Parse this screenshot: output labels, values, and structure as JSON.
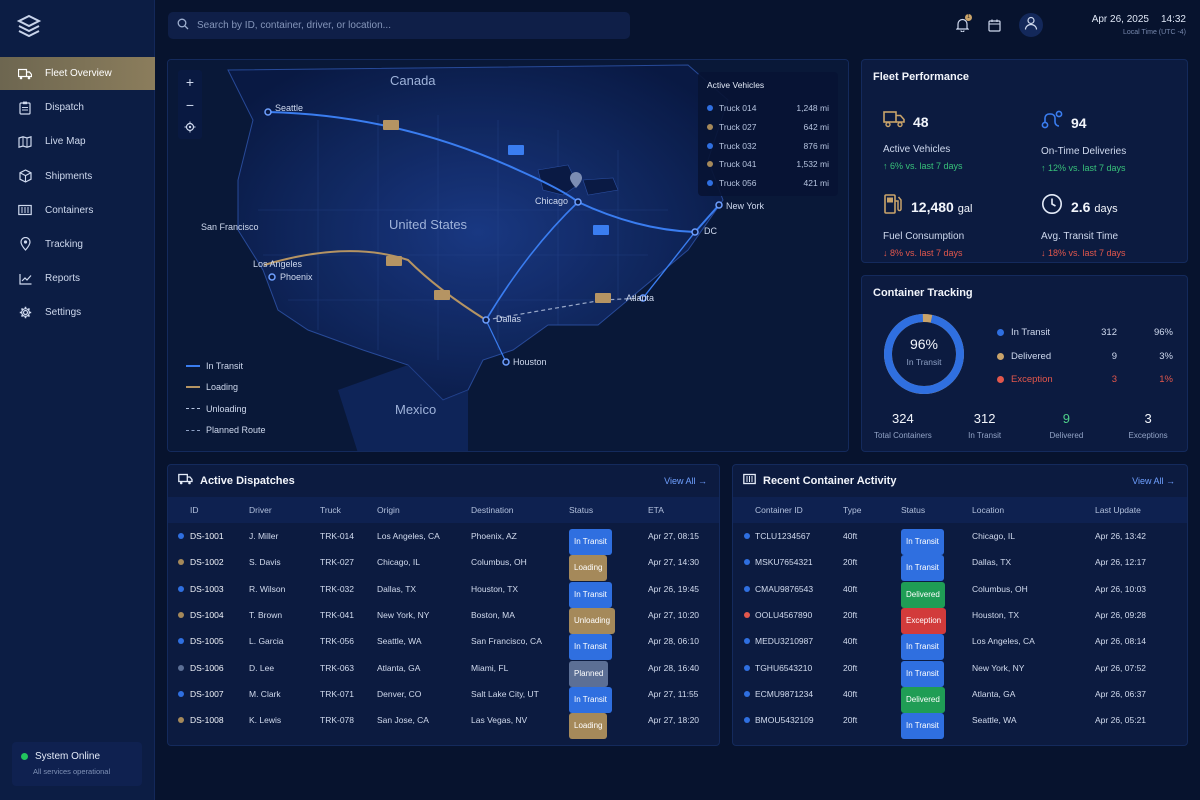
{
  "colors": {
    "accent": "#8b7d5c",
    "transit": "#2f6fe0",
    "loading": "#a5895a",
    "delivered": "#1f9d55",
    "exception": "#d23b3b",
    "planned": "#5c6f95"
  },
  "nav": {
    "items": [
      {
        "label": "Fleet Overview",
        "icon": "truck-icon"
      },
      {
        "label": "Dispatch",
        "icon": "clipboard-icon"
      },
      {
        "label": "Live Map",
        "icon": "map-icon"
      },
      {
        "label": "Shipments",
        "icon": "box-icon"
      },
      {
        "label": "Containers",
        "icon": "container-icon"
      },
      {
        "label": "Tracking",
        "icon": "pin-icon"
      },
      {
        "label": "Reports",
        "icon": "chart-icon"
      },
      {
        "label": "Settings",
        "icon": "gear-icon"
      }
    ],
    "system": {
      "title": "System Online",
      "sub": "All services operational"
    }
  },
  "top": {
    "search_placeholder": "Search by ID, container, driver, or location...",
    "notif_count": "1",
    "date": "Apr 26, 2025",
    "time": "14:32",
    "tz": "Local Time (UTC -4)"
  },
  "map": {
    "labels": {
      "canada": "Canada",
      "us": "United States",
      "mexico": "Mexico",
      "seattle": "Seattle",
      "sf": "San Francisco",
      "la": "Los Angeles",
      "phoenix": "Phoenix",
      "chicago": "Chicago",
      "ny": "New York",
      "dc": "DC",
      "atlanta": "Atlanta",
      "dallas": "Dallas",
      "houston": "Houston"
    },
    "legend": [
      "In Transit",
      "Loading",
      "Unloading",
      "Planned Route"
    ],
    "active": {
      "title": "Active Vehicles",
      "rows": [
        {
          "name": "Truck 014",
          "miles": "1,248 mi",
          "color": "#2f6fe0"
        },
        {
          "name": "Truck 027",
          "miles": "642 mi",
          "color": "#a5895a"
        },
        {
          "name": "Truck 032",
          "miles": "876 mi",
          "color": "#2f6fe0"
        },
        {
          "name": "Truck 041",
          "miles": "1,532 mi",
          "color": "#a5895a"
        },
        {
          "name": "Truck 056",
          "miles": "421 mi",
          "color": "#2f6fe0"
        }
      ]
    }
  },
  "perf": {
    "title": "Fleet Performance",
    "metrics": [
      {
        "value": "48",
        "unit": "",
        "label": "Active Vehicles",
        "change": "↑ 6% vs. last 7 days",
        "icon": "truck-icon"
      },
      {
        "value": "94",
        "unit": "",
        "label": "On-Time Deliveries",
        "change": "↑ 12% vs. last 7 days",
        "icon": "route-icon"
      },
      {
        "value": "12,480",
        "unit": "gal",
        "label": "Fuel Consumption",
        "change": "↓ 8% vs. last 7 days",
        "icon": "fuel-icon"
      },
      {
        "value": "2.6",
        "unit": "days",
        "label": "Avg. Transit Time",
        "change": "↓ 18% vs. last 7 days",
        "icon": "clock-icon"
      }
    ]
  },
  "ctrack": {
    "title": "Container Tracking",
    "center_value": "96%",
    "center_label": "In Transit",
    "donut_fraction": 0.96,
    "legend": [
      {
        "name": "In Transit",
        "count": "312",
        "pct": "96%",
        "color": "#2f6fe0"
      },
      {
        "name": "Delivered",
        "count": "9",
        "pct": "3%",
        "color": "#c9a36a"
      },
      {
        "name": "Exception",
        "count": "3",
        "pct": "1%",
        "color": "#e2574c"
      }
    ],
    "stats": [
      {
        "value": "324",
        "label": "Total Containers"
      },
      {
        "value": "312",
        "label": "In Transit"
      },
      {
        "value": "9",
        "label": "Delivered"
      },
      {
        "value": "3",
        "label": "Exceptions"
      }
    ]
  },
  "dispatch": {
    "title": "Active Dispatches",
    "view_all": "View All →",
    "columns": [
      "ID",
      "Driver",
      "Truck",
      "Origin",
      "Destination",
      "Status",
      "ETA"
    ],
    "rows": [
      {
        "id": "DS-1001",
        "driver": "J. Miller",
        "truck": "TRK-014",
        "origin": "Los Angeles, CA",
        "dest": "Phoenix, AZ",
        "status": "In Transit",
        "eta": "Apr 27, 08:15",
        "color": "#2f6fe0"
      },
      {
        "id": "DS-1002",
        "driver": "S. Davis",
        "truck": "TRK-027",
        "origin": "Chicago, IL",
        "dest": "Columbus, OH",
        "status": "Loading",
        "eta": "Apr 27, 14:30",
        "color": "#a5895a"
      },
      {
        "id": "DS-1003",
        "driver": "R. Wilson",
        "truck": "TRK-032",
        "origin": "Dallas, TX",
        "dest": "Houston, TX",
        "status": "In Transit",
        "eta": "Apr 26, 19:45",
        "color": "#2f6fe0"
      },
      {
        "id": "DS-1004",
        "driver": "T. Brown",
        "truck": "TRK-041",
        "origin": "New York, NY",
        "dest": "Boston, MA",
        "status": "Unloading",
        "eta": "Apr 27, 10:20",
        "color": "#a5895a"
      },
      {
        "id": "DS-1005",
        "driver": "L. Garcia",
        "truck": "TRK-056",
        "origin": "Seattle, WA",
        "dest": "San Francisco, CA",
        "status": "In Transit",
        "eta": "Apr 28, 06:10",
        "color": "#2f6fe0"
      },
      {
        "id": "DS-1006",
        "driver": "D. Lee",
        "truck": "TRK-063",
        "origin": "Atlanta, GA",
        "dest": "Miami, FL",
        "status": "Planned",
        "eta": "Apr 28, 16:40",
        "color": "#5c6f95"
      },
      {
        "id": "DS-1007",
        "driver": "M. Clark",
        "truck": "TRK-071",
        "origin": "Denver, CO",
        "dest": "Salt Lake City, UT",
        "status": "In Transit",
        "eta": "Apr 27, 11:55",
        "color": "#2f6fe0"
      },
      {
        "id": "DS-1008",
        "driver": "K. Lewis",
        "truck": "TRK-078",
        "origin": "San Jose, CA",
        "dest": "Las Vegas, NV",
        "status": "Loading",
        "eta": "Apr 27, 18:20",
        "color": "#a5895a"
      }
    ]
  },
  "activity": {
    "title": "Recent Container Activity",
    "view_all": "View All →",
    "columns": [
      "Container ID",
      "Type",
      "Status",
      "Location",
      "Last Update"
    ],
    "rows": [
      {
        "id": "TCLU1234567",
        "type": "40ft",
        "status": "In Transit",
        "loc": "Chicago, IL",
        "upd": "Apr 26, 13:42",
        "color": "#2f6fe0",
        "dot": "#2f6fe0"
      },
      {
        "id": "MSKU7654321",
        "type": "20ft",
        "status": "In Transit",
        "loc": "Dallas, TX",
        "upd": "Apr 26, 12:17",
        "color": "#2f6fe0",
        "dot": "#2f6fe0"
      },
      {
        "id": "CMAU9876543",
        "type": "40ft",
        "status": "Delivered",
        "loc": "Columbus, OH",
        "upd": "Apr 26, 10:03",
        "color": "#1f9d55",
        "dot": "#2f6fe0"
      },
      {
        "id": "OOLU4567890",
        "type": "20ft",
        "status": "Exception",
        "loc": "Houston, TX",
        "upd": "Apr 26, 09:28",
        "color": "#d23b3b",
        "dot": "#e2574c"
      },
      {
        "id": "MEDU3210987",
        "type": "40ft",
        "status": "In Transit",
        "loc": "Los Angeles, CA",
        "upd": "Apr 26, 08:14",
        "color": "#2f6fe0",
        "dot": "#2f6fe0"
      },
      {
        "id": "TGHU6543210",
        "type": "20ft",
        "status": "In Transit",
        "loc": "New York, NY",
        "upd": "Apr 26, 07:52",
        "color": "#2f6fe0",
        "dot": "#2f6fe0"
      },
      {
        "id": "ECMU9871234",
        "type": "40ft",
        "status": "Delivered",
        "loc": "Atlanta, GA",
        "upd": "Apr 26, 06:37",
        "color": "#1f9d55",
        "dot": "#2f6fe0"
      },
      {
        "id": "BMOU5432109",
        "type": "20ft",
        "status": "In Transit",
        "loc": "Seattle, WA",
        "upd": "Apr 26, 05:21",
        "color": "#2f6fe0",
        "dot": "#2f6fe0"
      }
    ]
  }
}
